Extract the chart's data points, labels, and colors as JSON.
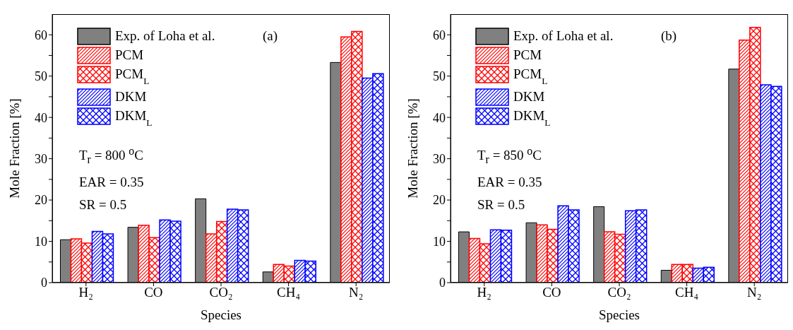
{
  "chart_data": [
    {
      "type": "bar",
      "xlabel": "Species",
      "ylabel": "Mole Fraction [%]",
      "categories": [
        "H₂",
        "CO",
        "CO₂",
        "CH₄",
        "N₂"
      ],
      "ylim": [
        0,
        65
      ],
      "yticks": [
        0,
        {
          "value": 5,
          "label": null
        },
        10,
        {
          "value": 15,
          "label": null
        },
        20,
        {
          "value": 25,
          "label": null
        },
        30,
        {
          "value": 35,
          "label": null
        },
        40,
        {
          "value": 45,
          "label": null
        },
        50,
        {
          "value": 55,
          "label": null
        },
        60
      ],
      "grid": false,
      "legend": "top left",
      "annotations": [
        "(a)",
        "T$_{r}$ = 800 $^{o}$C",
        "EAR = 0.35",
        "SR = 0.5"
      ],
      "series": [
        {
          "name": "Exp. of Loha et al.",
          "color": "#808080",
          "values": [
            10.4,
            13.4,
            20.3,
            2.6,
            53.3
          ]
        },
        {
          "name": "PCM",
          "color": "#ff0000",
          "values": [
            10.6,
            13.9,
            11.8,
            4.4,
            59.5
          ]
        },
        {
          "name": "PCM$_{L}$",
          "color": "#ff0000",
          "values": [
            9.6,
            10.9,
            14.8,
            4.0,
            60.8
          ]
        },
        {
          "name": "DKM",
          "color": "#0000ff",
          "values": [
            12.4,
            15.2,
            17.8,
            5.4,
            49.5
          ]
        },
        {
          "name": "DKM$_{L}$",
          "color": "#0000ff",
          "values": [
            11.8,
            14.9,
            17.6,
            5.2,
            50.6
          ]
        }
      ]
    },
    {
      "type": "bar",
      "xlabel": "Species",
      "ylabel": "Mole Fraction [%]",
      "categories": [
        "H₂",
        "CO",
        "CO₂",
        "CH₄",
        "N₂"
      ],
      "ylim": [
        0,
        65
      ],
      "yticks": [
        0,
        {
          "value": 5,
          "label": null
        },
        10,
        {
          "value": 15,
          "label": null
        },
        20,
        {
          "value": 25,
          "label": null
        },
        30,
        {
          "value": 35,
          "label": null
        },
        40,
        {
          "value": 45,
          "label": null
        },
        50,
        {
          "value": 55,
          "label": null
        },
        60
      ],
      "grid": false,
      "legend": "top left",
      "annotations": [
        "(b)",
        "T$_{r}$ = 850 $^{o}$C",
        "EAR = 0.35",
        "SR = 0.5"
      ],
      "series": [
        {
          "name": "Exp. of Loha et al.",
          "color": "#808080",
          "values": [
            12.3,
            14.5,
            18.4,
            3.0,
            51.7
          ]
        },
        {
          "name": "PCM",
          "color": "#ff0000",
          "values": [
            10.7,
            14.0,
            12.3,
            4.4,
            58.7
          ]
        },
        {
          "name": "PCM$_{L}$",
          "color": "#ff0000",
          "values": [
            9.4,
            12.9,
            11.7,
            4.4,
            61.8
          ]
        },
        {
          "name": "DKM",
          "color": "#0000ff",
          "values": [
            12.8,
            18.6,
            17.4,
            3.5,
            47.9
          ]
        },
        {
          "name": "DKM$_{L}$",
          "color": "#0000ff",
          "values": [
            12.7,
            17.6,
            17.6,
            3.7,
            47.5
          ]
        }
      ]
    }
  ]
}
